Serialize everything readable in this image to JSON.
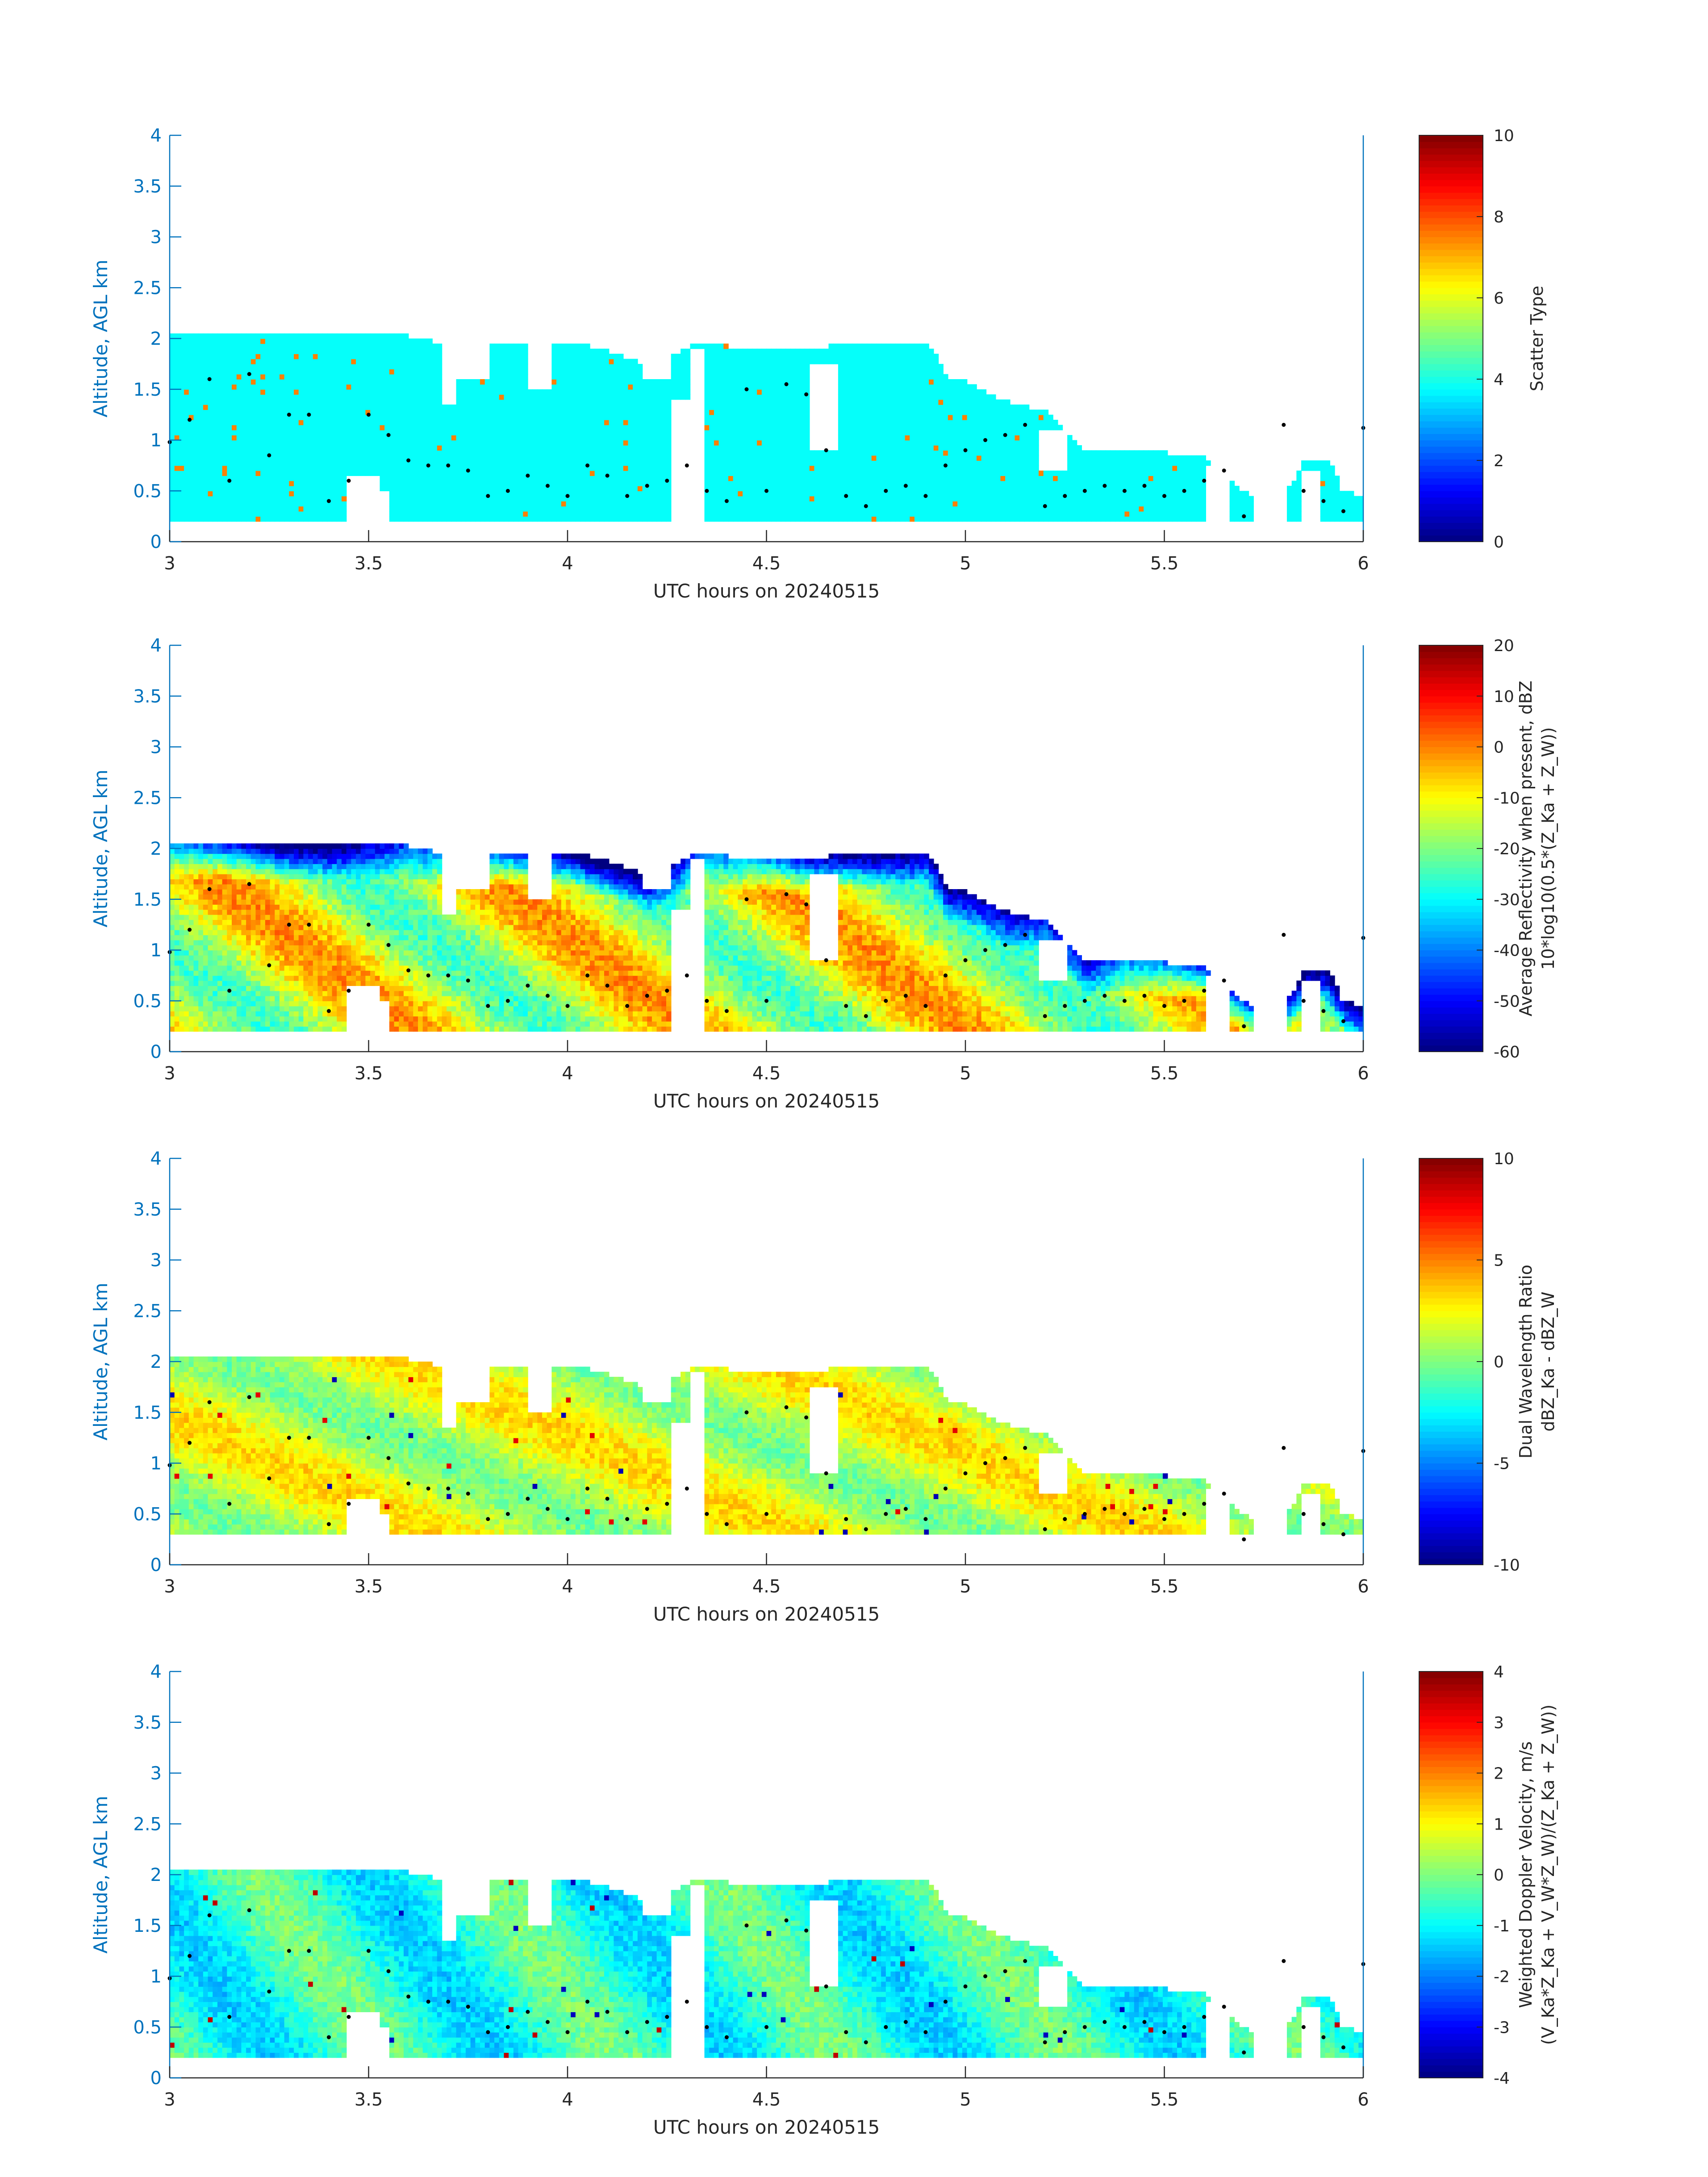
{
  "figure": {
    "colormap": "jet",
    "axis_label_color": "#0072bd",
    "missing_color": "#ffffff",
    "marker_color": "#000000"
  },
  "chart_data": [
    {
      "type": "heatmap",
      "xlabel": "UTC hours on 20240515",
      "ylabel": "Altitude, AGL km",
      "xlim": [
        3,
        6
      ],
      "ylim": [
        0,
        4
      ],
      "xticks": [
        "3",
        "3.5",
        "4",
        "4.5",
        "5",
        "5.5",
        "6"
      ],
      "yticks": [
        "0",
        "0.5",
        "1",
        "1.5",
        "2",
        "2.5",
        "3",
        "3.5",
        "4"
      ],
      "colorbar": {
        "label_lines": [
          "Scatter Type"
        ],
        "clim": [
          0,
          10
        ],
        "ticks": [
          "0",
          "2",
          "4",
          "6",
          "8",
          "10"
        ]
      },
      "field": "scatter",
      "cloud_base_km": 0.2,
      "dominant_value": 3.8,
      "outlier_value": 7.5
    },
    {
      "type": "heatmap",
      "xlabel": "UTC hours on 20240515",
      "ylabel": "Altitude, AGL km",
      "xlim": [
        3,
        6
      ],
      "ylim": [
        0,
        4
      ],
      "xticks": [
        "3",
        "3.5",
        "4",
        "4.5",
        "5",
        "5.5",
        "6"
      ],
      "yticks": [
        "0",
        "0.5",
        "1",
        "1.5",
        "2",
        "2.5",
        "3",
        "3.5",
        "4"
      ],
      "colorbar": {
        "label_lines": [
          "Average Reflectivity when present, dBZ",
          "10*log10(0.5*(Z_Ka + Z_W))"
        ],
        "clim": [
          -60,
          20
        ],
        "ticks": [
          "-60",
          "-50",
          "-40",
          "-30",
          "-20",
          "-10",
          "0",
          "10",
          "20"
        ]
      },
      "field": "reflectivity",
      "cloud_base_km": 0.2,
      "range_dbz": [
        -60,
        0
      ]
    },
    {
      "type": "heatmap",
      "xlabel": "UTC hours on 20240515",
      "ylabel": "Altitude, AGL km",
      "xlim": [
        3,
        6
      ],
      "ylim": [
        0,
        4
      ],
      "xticks": [
        "3",
        "3.5",
        "4",
        "4.5",
        "5",
        "5.5",
        "6"
      ],
      "yticks": [
        "0",
        "0.5",
        "1",
        "1.5",
        "2",
        "2.5",
        "3",
        "3.5",
        "4"
      ],
      "colorbar": {
        "label_lines": [
          "Dual Wavelength Ratio",
          "dBZ_Ka - dBZ_W"
        ],
        "clim": [
          -10,
          10
        ],
        "ticks": [
          "-10",
          "-5",
          "0",
          "5",
          "10"
        ]
      },
      "field": "dwr",
      "cloud_base_km": 0.3,
      "typical_range_db": [
        -1,
        4
      ]
    },
    {
      "type": "heatmap",
      "xlabel": "UTC hours on 20240515",
      "ylabel": "Altitude, AGL km",
      "xlim": [
        3,
        6
      ],
      "ylim": [
        0,
        4
      ],
      "xticks": [
        "3",
        "3.5",
        "4",
        "4.5",
        "5",
        "5.5",
        "6"
      ],
      "yticks": [
        "0",
        "0.5",
        "1",
        "1.5",
        "2",
        "2.5",
        "3",
        "3.5",
        "4"
      ],
      "colorbar": {
        "label_lines": [
          "Weighted Doppler Velocity, m/s",
          "(V_Ka*Z_Ka + V_W*Z_W)/(Z_Ka + Z_W))"
        ],
        "clim": [
          -4,
          4
        ],
        "ticks": [
          "-4",
          "-3",
          "-2",
          "-1",
          "0",
          "1",
          "2",
          "3",
          "4"
        ]
      },
      "field": "velocity",
      "cloud_base_km": 0.2,
      "typical_range_ms": [
        -1.5,
        0.8
      ]
    }
  ],
  "cloud_echo_top": {
    "x_hours": [
      3.0,
      3.1,
      3.2,
      3.3,
      3.4,
      3.5,
      3.6,
      3.65,
      3.7,
      3.8,
      3.9,
      4.0,
      4.05,
      4.1,
      4.2,
      4.3,
      4.35,
      4.4,
      4.5,
      4.6,
      4.7,
      4.8,
      4.85,
      4.9,
      4.95,
      5.0,
      5.1,
      5.15,
      5.2,
      5.3,
      5.4,
      5.5,
      5.6,
      5.65,
      5.7,
      5.75,
      5.8,
      5.85,
      5.9,
      5.95,
      6.0
    ],
    "top_km": [
      2.02,
      2.02,
      2.02,
      2.02,
      2.02,
      2.02,
      2.0,
      1.95,
      1.95,
      1.95,
      1.95,
      1.95,
      1.9,
      1.85,
      1.7,
      1.9,
      1.95,
      1.9,
      1.9,
      1.85,
      1.95,
      1.95,
      1.95,
      1.95,
      1.6,
      1.55,
      1.35,
      1.3,
      1.25,
      0.85,
      0.9,
      0.85,
      0.8,
      0.6,
      0.45,
      0.4,
      0.45,
      0.8,
      0.8,
      0.5,
      0.4
    ]
  },
  "cloud_base_markers": {
    "x_hours": [
      3.0,
      3.05,
      3.1,
      3.15,
      3.2,
      3.25,
      3.3,
      3.35,
      3.4,
      3.45,
      3.5,
      3.55,
      3.6,
      3.65,
      3.7,
      3.75,
      3.8,
      3.85,
      3.9,
      3.95,
      4.0,
      4.05,
      4.1,
      4.15,
      4.2,
      4.25,
      4.3,
      4.35,
      4.4,
      4.45,
      4.5,
      4.55,
      4.6,
      4.65,
      4.7,
      4.75,
      4.8,
      4.85,
      4.9,
      4.95,
      5.0,
      5.05,
      5.1,
      5.15,
      5.2,
      5.25,
      5.3,
      5.35,
      5.4,
      5.45,
      5.5,
      5.55,
      5.6,
      5.65,
      5.7,
      5.8,
      5.85,
      5.9,
      5.95,
      6.0
    ],
    "height_km": [
      0.98,
      1.2,
      1.6,
      0.6,
      1.65,
      0.85,
      1.25,
      1.25,
      0.4,
      0.6,
      1.25,
      1.05,
      0.8,
      0.75,
      0.75,
      0.7,
      0.45,
      0.5,
      0.65,
      0.55,
      0.45,
      0.75,
      0.65,
      0.45,
      0.55,
      0.6,
      0.75,
      0.5,
      0.4,
      1.5,
      0.5,
      1.55,
      1.45,
      0.9,
      0.45,
      0.35,
      0.5,
      0.55,
      0.45,
      0.75,
      0.9,
      1.0,
      1.05,
      1.15,
      0.35,
      0.45,
      0.5,
      0.55,
      0.5,
      0.55,
      0.45,
      0.5,
      0.6,
      0.7,
      0.25,
      1.15,
      0.5,
      0.4,
      0.3,
      1.12
    ]
  }
}
